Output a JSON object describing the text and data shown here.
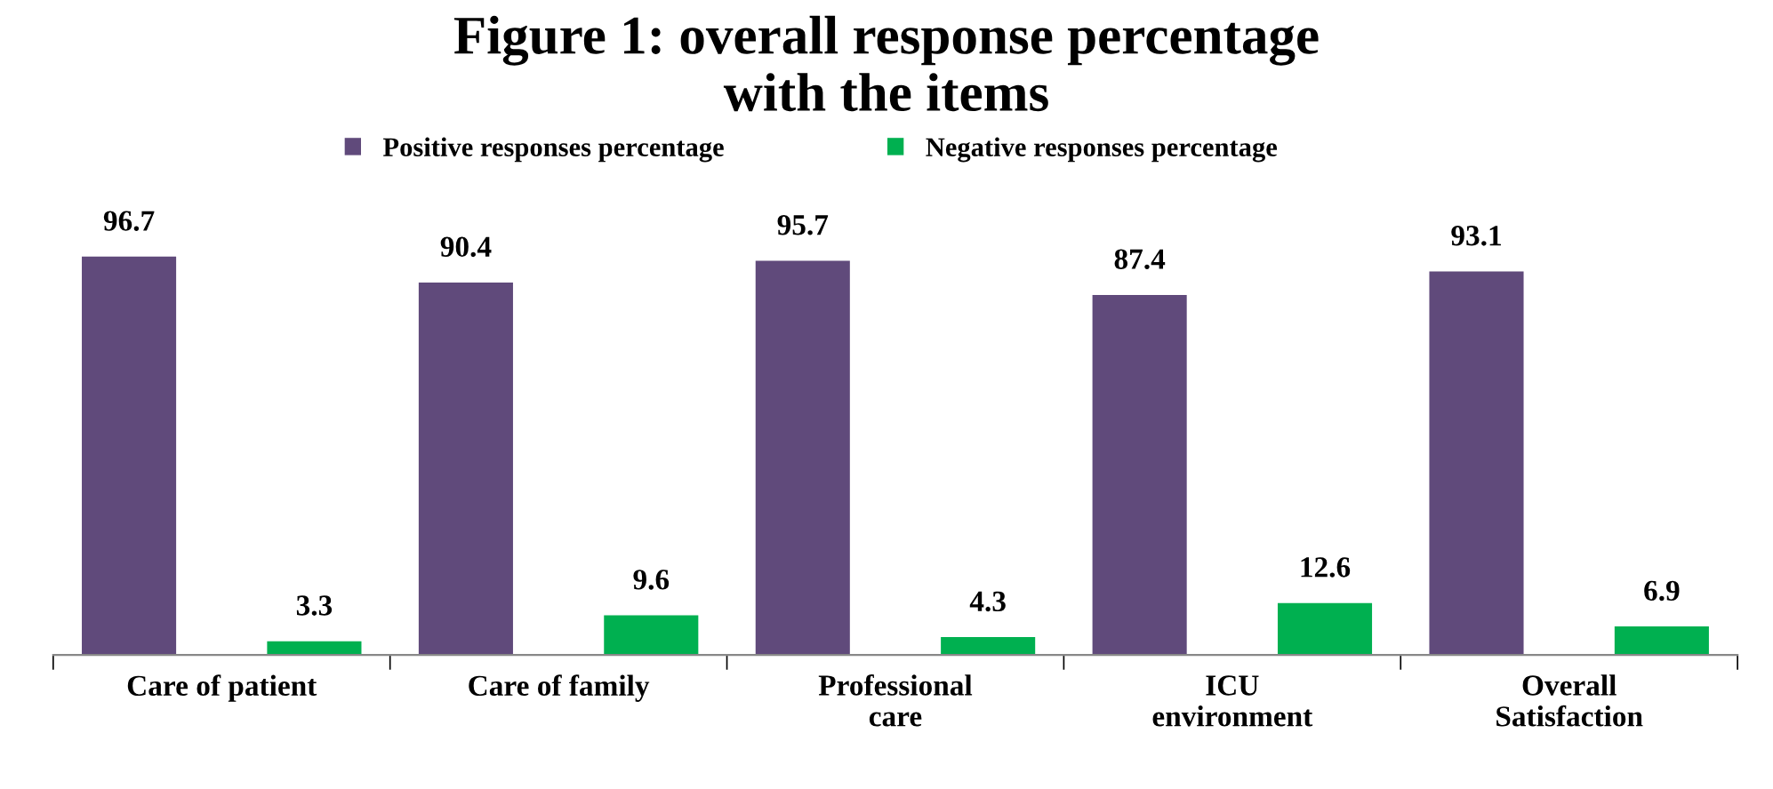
{
  "chart_data": {
    "type": "bar",
    "title": "Figure 1: overall response percentage\nwith the items",
    "categories": [
      "Care of patient",
      "Care of family",
      "Professional\ncare",
      "ICU\nenvironment",
      "Overall\nSatisfaction"
    ],
    "series": [
      {
        "name": "Positive responses percentage",
        "color": "#604a7b",
        "values": [
          96.7,
          90.4,
          95.7,
          87.4,
          93.1
        ]
      },
      {
        "name": "Negative responses percentage",
        "color": "#00b050",
        "values": [
          3.3,
          9.6,
          4.3,
          12.6,
          6.9
        ]
      }
    ],
    "data_labels": true,
    "legend": "top",
    "grid": false
  }
}
